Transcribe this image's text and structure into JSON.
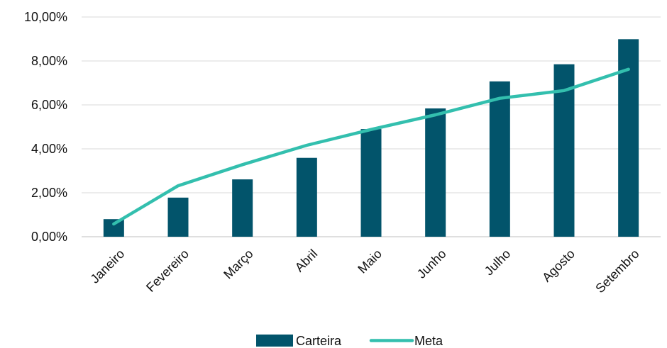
{
  "chart_data": {
    "type": "bar",
    "categories": [
      "Janeiro",
      "Fevereiro",
      "Março",
      "Abril",
      "Maio",
      "Junho",
      "Julho",
      "Agosto",
      "Setembro"
    ],
    "series": [
      {
        "name": "Carteira",
        "kind": "bar",
        "color": "#02546b",
        "values": [
          0.8,
          1.78,
          2.61,
          3.59,
          4.9,
          5.84,
          7.07,
          7.85,
          8.99
        ]
      },
      {
        "name": "Meta",
        "kind": "line",
        "color": "#33bfae",
        "values": [
          0.58,
          2.32,
          3.28,
          4.16,
          4.88,
          5.55,
          6.3,
          6.65,
          7.62
        ]
      }
    ],
    "y_ticks": [
      "0,00%",
      "2,00%",
      "4,00%",
      "6,00%",
      "8,00%",
      "10,00%"
    ],
    "ylim": [
      0,
      10
    ],
    "y_unit": "%",
    "grid": true,
    "legend_position": "bottom",
    "title": "",
    "xlabel": "",
    "ylabel": ""
  }
}
